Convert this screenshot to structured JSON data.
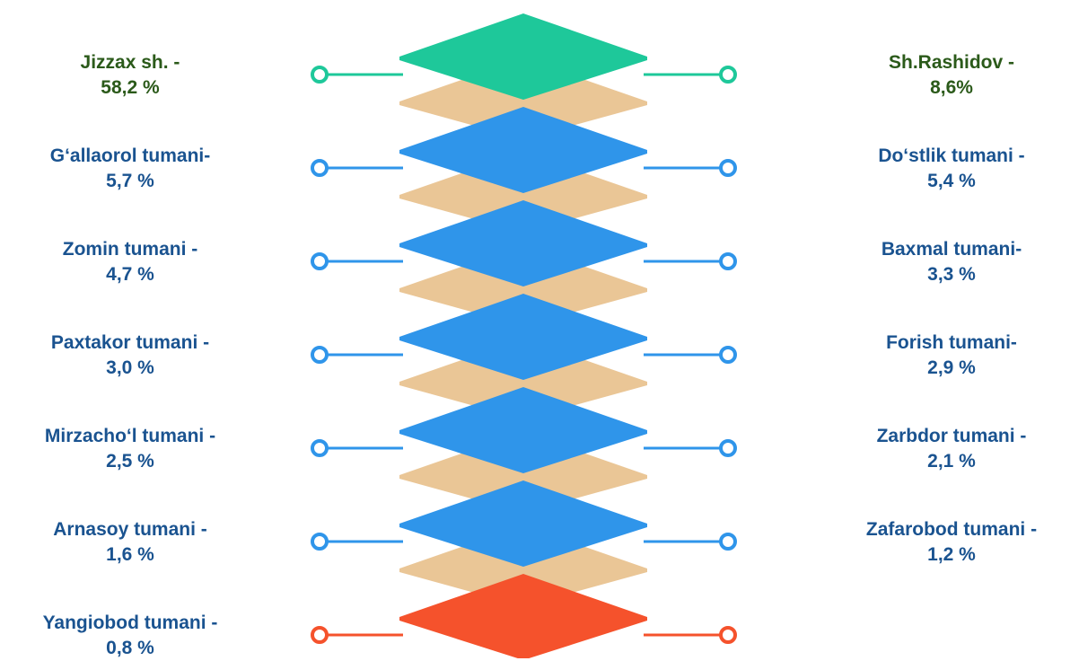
{
  "colors": {
    "text_default": "#1a5390",
    "text_first": "#2b5a1a",
    "chevron_first": "#1ec89a",
    "chevron_mid": "#2f95ea",
    "chevron_last": "#f5522c",
    "spacer": "#eac696"
  },
  "rows": [
    {
      "color": "#1ec89a",
      "text_color": "#2b5a1a",
      "left": {
        "name": "Jizzax sh. -",
        "value": "58,2 %"
      },
      "right": {
        "name": "Sh.Rashidov -",
        "value": "8,6%"
      }
    },
    {
      "color": "#2f95ea",
      "text_color": "#1a5390",
      "left": {
        "name": "G‘allaorol tumani-",
        "value": "5,7 %"
      },
      "right": {
        "name": "Do‘stlik tumani -",
        "value": "5,4 %"
      }
    },
    {
      "color": "#2f95ea",
      "text_color": "#1a5390",
      "left": {
        "name": "Zomin tumani -",
        "value": "4,7 %"
      },
      "right": {
        "name": "Baxmal tumani-",
        "value": "3,3 %"
      }
    },
    {
      "color": "#2f95ea",
      "text_color": "#1a5390",
      "left": {
        "name": "Paxtakor tumani -",
        "value": "3,0 %"
      },
      "right": {
        "name": "Forish tumani-",
        "value": "2,9 %"
      }
    },
    {
      "color": "#2f95ea",
      "text_color": "#1a5390",
      "left": {
        "name": "Mirzacho‘l  tumani -",
        "value": "2,5 %"
      },
      "right": {
        "name": "Zarbdor tumani -",
        "value": "2,1 %"
      }
    },
    {
      "color": "#2f95ea",
      "text_color": "#1a5390",
      "left": {
        "name": "Arnasoy tumani -",
        "value": "1,6 %"
      },
      "right": {
        "name": "Zafarobod tumani -",
        "value": "1,2 %"
      }
    },
    {
      "color": "#f5522c",
      "text_color": "#1a5390",
      "left": {
        "name": "Yangiobod tumani -",
        "value": "0,8 %"
      },
      "right": null
    }
  ]
}
